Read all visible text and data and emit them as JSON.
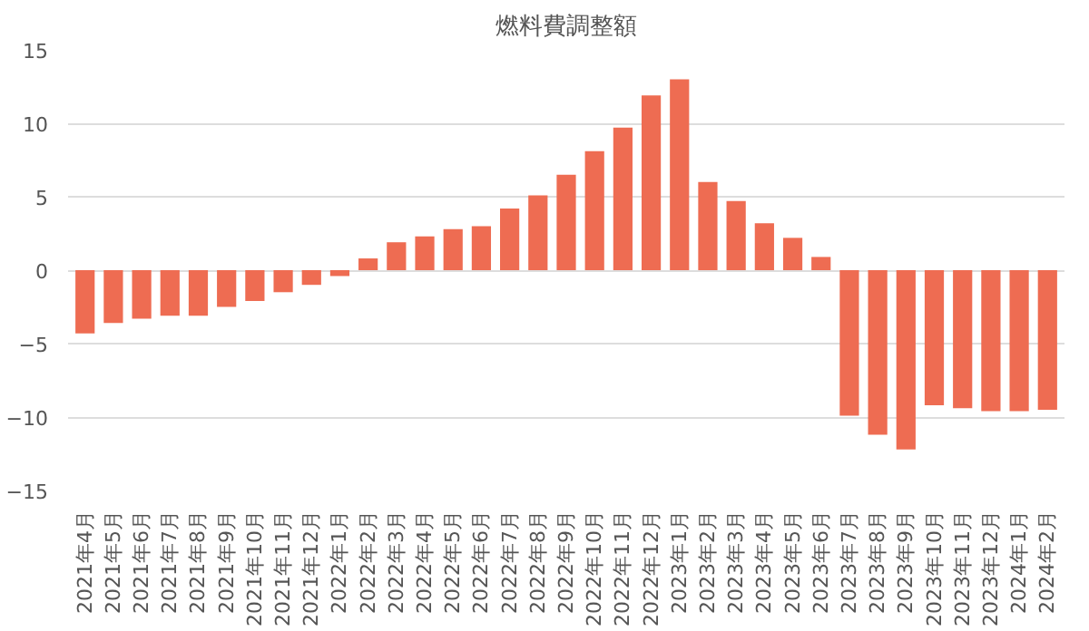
{
  "chart_data": {
    "type": "bar",
    "title": "燃料費調整額",
    "categories": [
      "2021年4月",
      "2021年5月",
      "2021年6月",
      "2021年7月",
      "2021年8月",
      "2021年9月",
      "2021年10月",
      "2021年11月",
      "2021年12月",
      "2022年1月",
      "2022年2月",
      "2022年3月",
      "2022年4月",
      "2022年5月",
      "2022年6月",
      "2022年7月",
      "2022年8月",
      "2022年9月",
      "2022年10月",
      "2022年11月",
      "2022年12月",
      "2023年1月",
      "2023年2月",
      "2023年3月",
      "2023年4月",
      "2023年5月",
      "2023年6月",
      "2023年7月",
      "2023年8月",
      "2023年9月",
      "2023年10月",
      "2023年11月",
      "2023年12月",
      "2024年1月",
      "2024年2月"
    ],
    "values": [
      -4.3,
      -3.6,
      -3.3,
      -3.1,
      -3.1,
      -2.5,
      -2.1,
      -1.5,
      -1.0,
      -0.4,
      0.8,
      1.9,
      2.3,
      2.8,
      3.0,
      4.2,
      5.1,
      6.5,
      8.1,
      9.7,
      11.9,
      13.0,
      6.0,
      4.7,
      3.2,
      2.2,
      0.9,
      -9.9,
      -11.2,
      -12.2,
      -9.2,
      -9.4,
      -9.6,
      -9.6,
      -9.5
    ],
    "color": "#ee6c52",
    "ylim": [
      -15,
      15
    ],
    "yticks": [
      -15,
      -10,
      -5,
      0,
      5,
      10,
      15
    ],
    "grid": "y"
  }
}
